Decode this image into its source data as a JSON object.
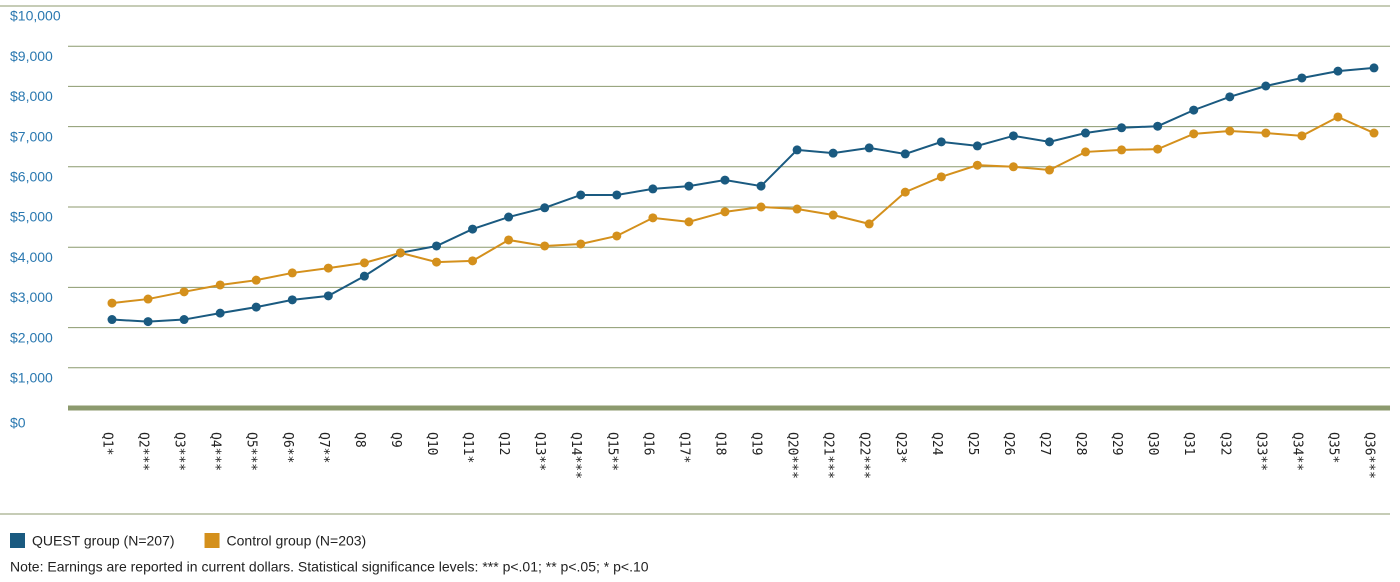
{
  "chart_data": {
    "type": "line",
    "categories": [
      "Q1*",
      "Q2***",
      "Q3***",
      "Q4***",
      "Q5***",
      "Q6**",
      "Q7**",
      "Q8",
      "Q9",
      "Q10",
      "Q11*",
      "Q12",
      "Q13**",
      "Q14***",
      "Q15**",
      "Q16",
      "Q17*",
      "Q18",
      "Q19",
      "Q20***",
      "Q21***",
      "Q22***",
      "Q23*",
      "Q24",
      "Q25",
      "Q26",
      "Q27",
      "Q28",
      "Q29",
      "Q30",
      "Q31",
      "Q32",
      "Q33**",
      "Q34**",
      "Q35*",
      "Q36***"
    ],
    "series": [
      {
        "name": "QUEST group (N=207)",
        "color": "#1a5a80",
        "values": [
          2200,
          2150,
          2200,
          2360,
          2510,
          2690,
          2790,
          3280,
          3860,
          4030,
          4450,
          4750,
          4980,
          5300,
          5300,
          5450,
          5520,
          5670,
          5520,
          6420,
          6340,
          6470,
          6320,
          6620,
          6520,
          6770,
          6620,
          6840,
          6970,
          7010,
          7410,
          7740,
          8010,
          8210,
          8380,
          8460
        ]
      },
      {
        "name": "Control group (N=203)",
        "color": "#d4901c",
        "values": [
          2610,
          2710,
          2890,
          3060,
          3180,
          3360,
          3480,
          3610,
          3860,
          3630,
          3660,
          4180,
          4030,
          4080,
          4280,
          4730,
          4630,
          4880,
          5000,
          4950,
          4800,
          4580,
          5370,
          5750,
          6040,
          6000,
          5920,
          6370,
          6420,
          6440,
          6820,
          6890,
          6840,
          6770,
          7240,
          6840
        ]
      }
    ],
    "ylim": [
      0,
      10000
    ],
    "yticks": [
      {
        "value": 0,
        "label": "$0"
      },
      {
        "value": 1000,
        "label": "$1,000"
      },
      {
        "value": 2000,
        "label": "$2,000"
      },
      {
        "value": 3000,
        "label": "$3,000"
      },
      {
        "value": 4000,
        "label": "$4,000"
      },
      {
        "value": 5000,
        "label": "$5,000"
      },
      {
        "value": 6000,
        "label": "$6,000"
      },
      {
        "value": 7000,
        "label": "$7,000"
      },
      {
        "value": 8000,
        "label": "$8,000"
      },
      {
        "value": 9000,
        "label": "$9,000"
      },
      {
        "value": 10000,
        "label": "$10,000"
      }
    ],
    "grid": true,
    "legend": "bottom-left",
    "note": "Note: Earnings are reported in current dollars.  Statistical significance levels: *** p<.01; ** p<.05; * p<.10"
  }
}
